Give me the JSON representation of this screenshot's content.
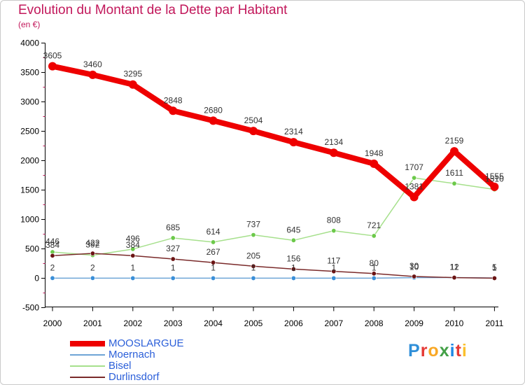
{
  "title": "Evolution du Montant de la Dette par Habitant",
  "subtitle": "(en €)",
  "logo": {
    "letters": [
      {
        "ch": "P",
        "color": "#2f8fd8"
      },
      {
        "ch": "r",
        "color": "#e53935"
      },
      {
        "ch": "o",
        "color": "#f9a825"
      },
      {
        "ch": "x",
        "color": "#43a047"
      },
      {
        "ch": "i",
        "color": "#1e88e5"
      },
      {
        "ch": "t",
        "color": "#e53935"
      },
      {
        "ch": "i",
        "color": "#fbc02d"
      }
    ]
  },
  "chart_data": {
    "type": "line",
    "title": "Evolution du Montant de la Dette par Habitant",
    "subtitle": "(en €)",
    "categories": [
      "2000",
      "2001",
      "2002",
      "2003",
      "2004",
      "2005",
      "2006",
      "2007",
      "2008",
      "2009",
      "2010",
      "2011"
    ],
    "ylim": [
      -500,
      4000
    ],
    "yticks": [
      "-500",
      "0",
      "500",
      "1000",
      "1500",
      "2000",
      "2500",
      "3000",
      "3500",
      "4000"
    ],
    "grid": false,
    "legend_position": "bottom-left",
    "series": [
      {
        "name": "MOOSLARGUE",
        "color": "#ee0000",
        "line_color": "#ee0000",
        "values": [
          3605,
          3460,
          3295,
          2848,
          2680,
          2504,
          2314,
          2134,
          1948,
          1381,
          2159,
          1555
        ],
        "labels": [
          "3605",
          "3460",
          "3295",
          "2848",
          "2680",
          "2504",
          "2314",
          "2134",
          "1948",
          "1381",
          "2159",
          "1555"
        ]
      },
      {
        "name": "Moernach",
        "color": "#3a8fd8",
        "line_color": "#6fa5d6",
        "values": [
          2,
          2,
          1,
          1,
          1,
          1,
          1,
          1,
          1,
          10,
          12,
          5
        ],
        "labels": [
          "2",
          "2",
          "1",
          "1",
          "1",
          "1",
          "1",
          "1",
          "1",
          "10",
          "12",
          "5"
        ]
      },
      {
        "name": "Bisel",
        "color": "#6cc94a",
        "line_color": "#a6e08c",
        "values": [
          446,
          392,
          496,
          685,
          614,
          737,
          645,
          808,
          721,
          1707,
          1611,
          1510
        ],
        "labels": [
          "446",
          "392",
          "496",
          "685",
          "614",
          "737",
          "645",
          "808",
          "721",
          "1707",
          "1611",
          "1510"
        ]
      },
      {
        "name": "Durlinsdorf",
        "color": "#6b1414",
        "line_color": "#7a2a2a",
        "values": [
          384,
          422,
          384,
          327,
          267,
          205,
          156,
          117,
          80,
          30,
          11,
          1
        ],
        "labels": [
          "384",
          "422",
          "384",
          "327",
          "267",
          "205",
          "156",
          "117",
          "80",
          "30",
          "11",
          "1"
        ]
      }
    ]
  }
}
